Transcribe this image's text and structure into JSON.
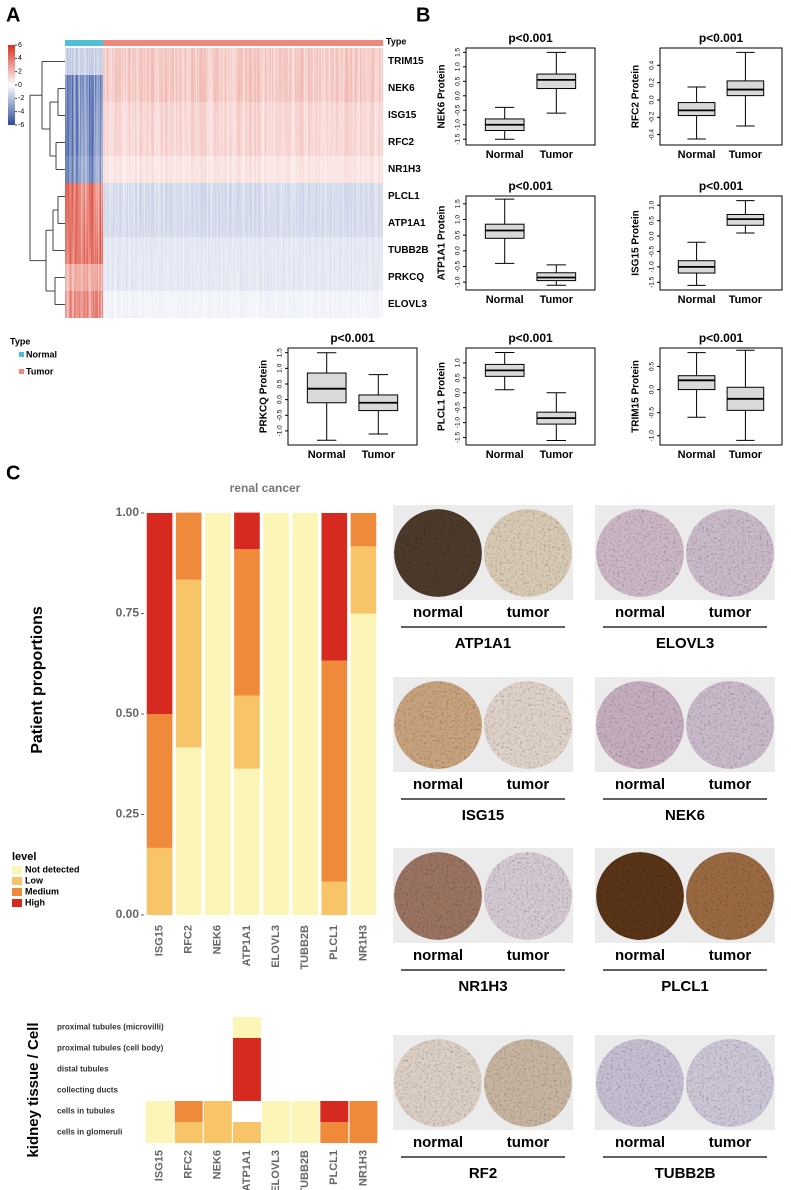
{
  "panel_labels": [
    "A",
    "B",
    "C"
  ],
  "chart_data": [
    {
      "type": "heatmap",
      "annotation_title": "Type",
      "rows": [
        "TRIM15",
        "NEK6",
        "ISG15",
        "RFC2",
        "NR1H3",
        "PLCL1",
        "ATP1A1",
        "TUBB2B",
        "PRKCQ",
        "ELOVL3"
      ],
      "columns": [
        "Normal",
        "Tumor"
      ],
      "column_colors": [
        "#4fbfd6",
        "#f0877c"
      ],
      "values": [
        [
          -2,
          2
        ],
        [
          -5,
          2
        ],
        [
          -5,
          1.5
        ],
        [
          -5,
          1.5
        ],
        [
          -4.5,
          1
        ],
        [
          5,
          -1.5
        ],
        [
          5,
          -1.5
        ],
        [
          5,
          -1
        ],
        [
          3,
          -1
        ],
        [
          4,
          -0.5
        ]
      ],
      "clim": [
        -6,
        6
      ],
      "colorbar_ticks": [
        6,
        4,
        2,
        0,
        -2,
        -4,
        -6
      ],
      "colors": [
        "#2b4a9c",
        "#ffffff",
        "#d7301f"
      ],
      "legend_title": "Type"
    },
    {
      "type": "box",
      "title": "p<0.001",
      "ylabel": "NEK6 Protein",
      "categories": [
        "Normal",
        "Tumor"
      ],
      "color": "#d9d9d9",
      "stats": [
        [
          -1.5,
          -1.2,
          -1.0,
          -0.8,
          -0.4
        ],
        [
          -0.6,
          0.25,
          0.55,
          0.75,
          1.5
        ]
      ],
      "ylim": [
        -1.7,
        1.65
      ],
      "yticks": [
        -1.5,
        {
          "value": -1,
          "label": "-1.0"
        },
        -0.5,
        {
          "value": 0,
          "label": "0.0"
        },
        0.5,
        {
          "value": 1,
          "label": "1.0"
        },
        1.5
      ]
    },
    {
      "type": "box",
      "title": "p<0.001",
      "ylabel": "RFC2 Protein",
      "categories": [
        "Normal",
        "Tumor"
      ],
      "color": "#d9d9d9",
      "stats": [
        [
          -0.45,
          -0.18,
          -0.12,
          -0.03,
          0.15
        ],
        [
          -0.3,
          0.05,
          0.12,
          0.22,
          0.55
        ]
      ],
      "ylim": [
        -0.52,
        0.6
      ],
      "yticks": [
        -0.4,
        -0.2,
        {
          "value": 0,
          "label": "0.0"
        },
        0.2,
        0.4
      ]
    },
    {
      "type": "box",
      "title": "p<0.001",
      "ylabel": "ATP1A1 Protein",
      "categories": [
        "Normal",
        "Tumor"
      ],
      "color": "#d9d9d9",
      "stats": [
        [
          -0.4,
          0.4,
          0.65,
          0.85,
          1.65
        ],
        [
          -1.1,
          -0.95,
          -0.85,
          -0.7,
          -0.45
        ]
      ],
      "ylim": [
        -1.25,
        1.75
      ],
      "yticks": [
        {
          "value": -1,
          "label": "-1.0"
        },
        -0.5,
        {
          "value": 0,
          "label": "0.0"
        },
        0.5,
        {
          "value": 1,
          "label": "1.0"
        },
        1.5
      ]
    },
    {
      "type": "box",
      "title": "p<0.001",
      "ylabel": "ISG15 Protein",
      "categories": [
        "Normal",
        "Tumor"
      ],
      "color": "#d9d9d9",
      "stats": [
        [
          -1.6,
          -1.2,
          -1.0,
          -0.8,
          -0.2
        ],
        [
          0.1,
          0.35,
          0.55,
          0.7,
          1.15
        ]
      ],
      "ylim": [
        -1.75,
        1.3
      ],
      "yticks": [
        -1.5,
        {
          "value": -1,
          "label": "-1.0"
        },
        -0.5,
        {
          "value": 0,
          "label": "0.0"
        },
        0.5,
        {
          "value": 1,
          "label": "1.0"
        }
      ]
    },
    {
      "type": "box",
      "title": "p<0.001",
      "ylabel": "PRKCQ Protein",
      "categories": [
        "Normal",
        "Tumor"
      ],
      "color": "#d9d9d9",
      "stats": [
        [
          -1.3,
          -0.1,
          0.35,
          0.85,
          1.5
        ],
        [
          -1.1,
          -0.35,
          -0.1,
          0.15,
          0.8
        ]
      ],
      "ylim": [
        -1.45,
        1.65
      ],
      "yticks": [
        {
          "value": -1,
          "label": "-1.0"
        },
        -0.5,
        {
          "value": 0,
          "label": "0.0"
        },
        0.5,
        {
          "value": 1,
          "label": "1.0"
        },
        1.5
      ]
    },
    {
      "type": "box",
      "title": "p<0.001",
      "ylabel": "PLCL1 Protein",
      "categories": [
        "Normal",
        "Tumor"
      ],
      "color": "#d9d9d9",
      "stats": [
        [
          0.1,
          0.55,
          0.75,
          0.95,
          1.35
        ],
        [
          -1.6,
          -1.05,
          -0.85,
          -0.65,
          0.0
        ]
      ],
      "ylim": [
        -1.75,
        1.5
      ],
      "yticks": [
        -1.5,
        {
          "value": -1,
          "label": "-1.0"
        },
        -0.5,
        {
          "value": 0,
          "label": "0.0"
        },
        0.5,
        {
          "value": 1,
          "label": "1.0"
        }
      ]
    },
    {
      "type": "box",
      "title": "p<0.001",
      "ylabel": "TRIM15 Protein",
      "categories": [
        "Normal",
        "Tumor"
      ],
      "color": "#d9d9d9",
      "stats": [
        [
          -0.6,
          0.0,
          0.2,
          0.3,
          0.8
        ],
        [
          -1.1,
          -0.45,
          -0.2,
          0.05,
          0.85
        ]
      ],
      "ylim": [
        -1.2,
        0.9
      ],
      "yticks": [
        {
          "value": -1,
          "label": "-1.0"
        },
        -0.5,
        {
          "value": 0,
          "label": "0.0"
        },
        0.5
      ]
    },
    {
      "type": "stacked_bar",
      "title": "renal cancer",
      "ylabel": "Patient proportions",
      "categories": [
        "ISG15",
        "RFC2",
        "NEK6",
        "ATP1A1",
        "ELOVL3",
        "TUBB2B",
        "PLCL1",
        "NR1H3"
      ],
      "series": [
        {
          "name": "Not detected",
          "color": "#fbf5b7",
          "values": [
            0,
            0.417,
            1,
            0.364,
            1,
            1,
            0,
            0.75
          ]
        },
        {
          "name": "Low",
          "color": "#f7c567",
          "values": [
            0.167,
            0.417,
            0,
            0.182,
            0,
            0,
            0.083,
            0.167
          ]
        },
        {
          "name": "Medium",
          "color": "#ef8a3b",
          "values": [
            0.333,
            0.167,
            0,
            0.364,
            0,
            0,
            0.55,
            0.083
          ]
        },
        {
          "name": "High",
          "color": "#d62a20",
          "values": [
            0.5,
            0,
            0,
            0.091,
            0,
            0,
            0.367,
            0
          ]
        }
      ],
      "ylim": [
        0,
        1
      ],
      "yticks": [
        {
          "value": 0,
          "label": "0.00"
        },
        0.25,
        {
          "value": 0.5,
          "label": "0.50"
        },
        0.75,
        {
          "value": 1,
          "label": "1.00"
        }
      ],
      "legend_title": "level",
      "legend": "lower left"
    },
    {
      "type": "tile",
      "ylabel": "kidney  tissue / Cell",
      "rows": [
        "proximal tubules (microvilli)",
        "proximal tubules (cell body)",
        "distal tubules",
        "collecting ducts",
        "cells in tubules",
        "cells in glomeruli"
      ],
      "categories": [
        "ISG15",
        "RFC2",
        "NEK6",
        "ATP1A1",
        "ELOVL3",
        "TUBB2B",
        "PLCL1",
        "NR1H3"
      ],
      "levels": [
        [
          null,
          null,
          null,
          "Not detected",
          null,
          null,
          null,
          null
        ],
        [
          null,
          null,
          null,
          "High",
          null,
          null,
          null,
          null
        ],
        [
          null,
          null,
          null,
          "High",
          null,
          null,
          null,
          null
        ],
        [
          null,
          null,
          null,
          "High",
          null,
          null,
          null,
          null
        ],
        [
          "Not detected",
          "Medium",
          "Low",
          null,
          "Not detected",
          "Not detected",
          "High",
          "Medium"
        ],
        [
          "Not detected",
          "Low",
          "Low",
          "Low",
          "Not detected",
          "Not detected",
          "Medium",
          "Medium"
        ]
      ]
    }
  ],
  "ihc": [
    {
      "gene": "ATP1A1",
      "normal": "normal",
      "tumor": "tumor"
    },
    {
      "gene": "ELOVL3",
      "normal": "normal",
      "tumor": "tumor"
    },
    {
      "gene": "ISG15",
      "normal": "normal",
      "tumor": "tumor"
    },
    {
      "gene": "NEK6",
      "normal": "normal",
      "tumor": "tumor"
    },
    {
      "gene": "NR1H3",
      "normal": "normal",
      "tumor": "tumor"
    },
    {
      "gene": "PLCL1",
      "normal": "normal",
      "tumor": "tumor"
    },
    {
      "gene": "RF2",
      "normal": "normal",
      "tumor": "tumor"
    },
    {
      "gene": "TUBB2B",
      "normal": "normal",
      "tumor": "tumor"
    }
  ]
}
